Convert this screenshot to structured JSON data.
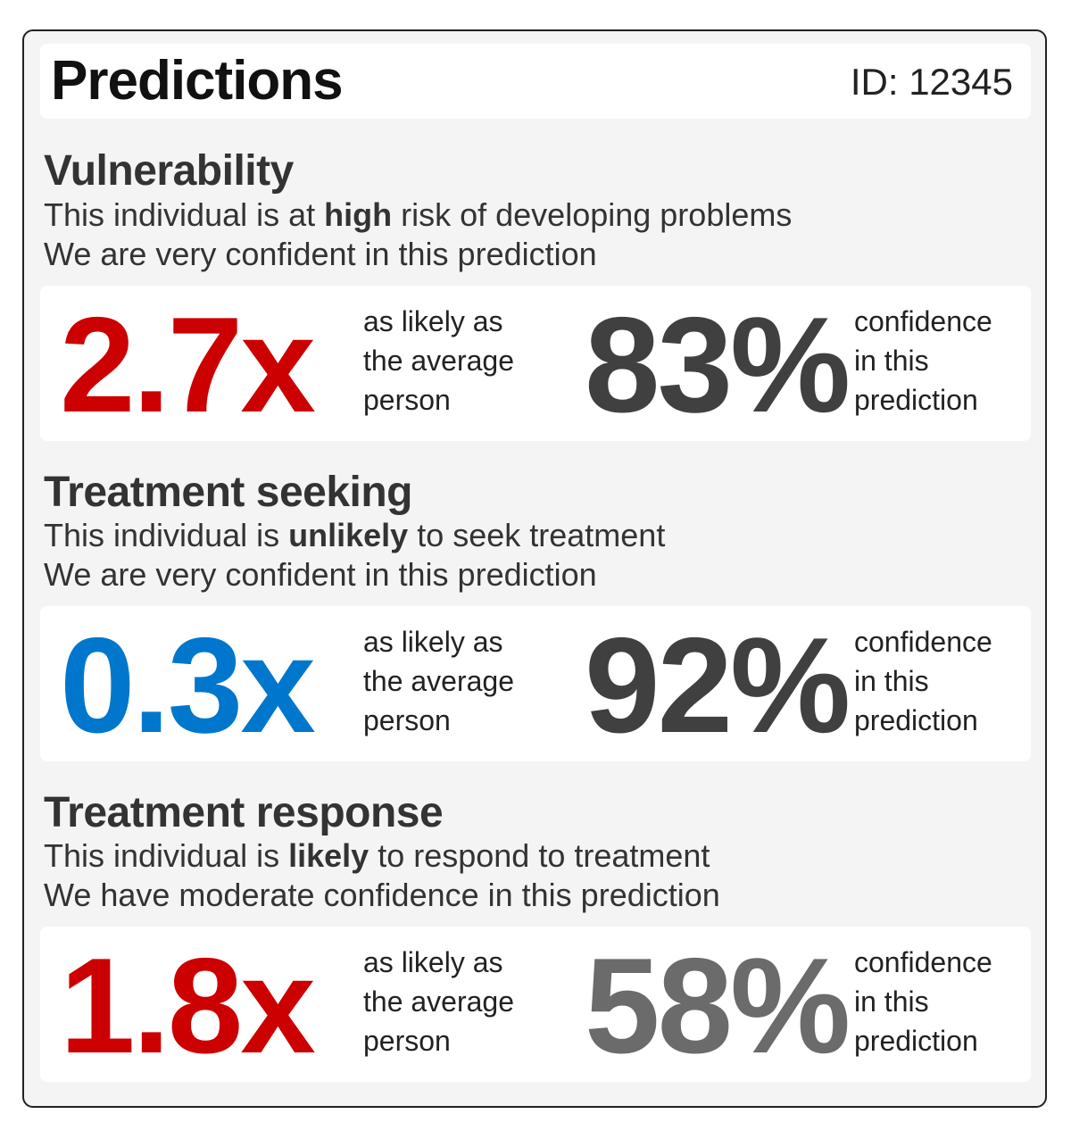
{
  "header": {
    "title": "Predictions",
    "id_text": "ID: 12345"
  },
  "colors": {
    "high": "#cc0000",
    "low": "#0077cc",
    "conf_strong": "#404040",
    "conf_moderate": "#6b6b6b"
  },
  "sections": [
    {
      "title": "Vulnerability",
      "line1_pre": "This individual is at ",
      "line1_bold": "high",
      "line1_post": " risk of developing problems",
      "line2": "We are very confident in this prediction",
      "ratio": "2.7x",
      "ratio_caption": [
        "as likely as",
        "the average",
        "person"
      ],
      "confidence": "83%",
      "confidence_caption": [
        "confidence",
        "in this",
        "prediction"
      ]
    },
    {
      "title": "Treatment seeking",
      "line1_pre": "This individual is ",
      "line1_bold": "unlikely",
      "line1_post": " to seek treatment",
      "line2": "We are very confident in this prediction",
      "ratio": "0.3x",
      "ratio_caption": [
        "as likely as",
        "the average",
        "person"
      ],
      "confidence": "92%",
      "confidence_caption": [
        "confidence",
        "in this",
        "prediction"
      ]
    },
    {
      "title": "Treatment response",
      "line1_pre": "This individual is ",
      "line1_bold": "likely",
      "line1_post": " to respond to treatment",
      "line2": "We have moderate confidence in this prediction",
      "ratio": "1.8x",
      "ratio_caption": [
        "as likely as",
        "the average",
        "person"
      ],
      "confidence": "58%",
      "confidence_caption": [
        "confidence",
        "in this",
        "prediction"
      ]
    }
  ]
}
